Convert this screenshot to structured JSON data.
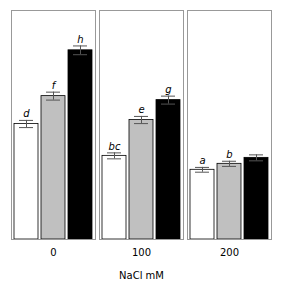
{
  "chart_data": {
    "type": "bar",
    "categories": [
      "0",
      "100",
      "200"
    ],
    "xlabel": "NaCl mM",
    "series": [
      {
        "color": "white",
        "values": [
          5.8,
          4.2,
          3.5
        ],
        "errors": [
          0.18,
          0.15,
          0.12
        ],
        "annotations": [
          "d",
          "bc",
          "a"
        ]
      },
      {
        "color": "#c0c0c0",
        "values": [
          7.2,
          6.0,
          3.8
        ],
        "errors": [
          0.2,
          0.18,
          0.13
        ],
        "annotations": [
          "f",
          "e",
          "b"
        ]
      },
      {
        "color": "#000000",
        "values": [
          9.5,
          7.0,
          4.1
        ],
        "errors": [
          0.22,
          0.2,
          0.15
        ],
        "annotations": [
          "h",
          "g",
          null
        ]
      }
    ],
    "ylim": [
      0,
      11.5
    ],
    "tick_labels": "x"
  }
}
